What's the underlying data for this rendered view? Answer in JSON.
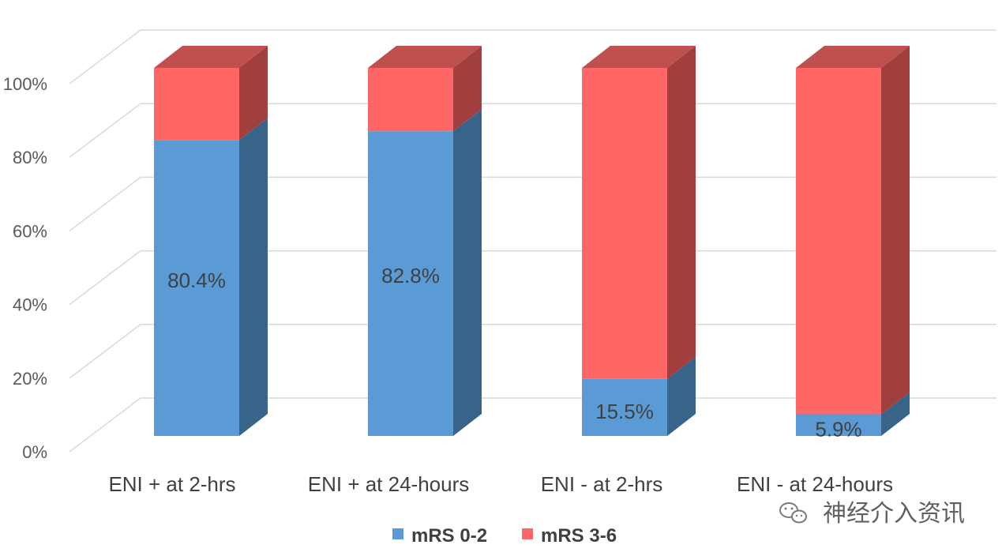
{
  "chart_data": {
    "type": "bar",
    "stacked": true,
    "three_d": true,
    "categories": [
      "ENI + at 2-hrs",
      "ENI + at 24-hours",
      "ENI - at 2-hrs",
      "ENI - at 24-hours"
    ],
    "series": [
      {
        "name": "mRS 0-2",
        "values": [
          80.4,
          82.8,
          15.5,
          5.9
        ],
        "labels": [
          "80.4%",
          "82.8%",
          "15.5%",
          "5.9%"
        ],
        "color": "#5b9bd5",
        "side_color": "#386489"
      },
      {
        "name": "mRS 3-6",
        "values": [
          19.6,
          17.2,
          84.5,
          94.1
        ],
        "color": "#ff6666",
        "side_color": "#a13e3e"
      }
    ],
    "y_ticks": [
      "0%",
      "20%",
      "40%",
      "60%",
      "80%",
      "100%"
    ],
    "ylim": [
      0,
      100
    ],
    "grid": true,
    "legend_position": "bottom",
    "title": "",
    "xlabel": "",
    "ylabel": ""
  },
  "watermark": {
    "text": "神经介入资讯",
    "icon": "wechat-icon"
  }
}
